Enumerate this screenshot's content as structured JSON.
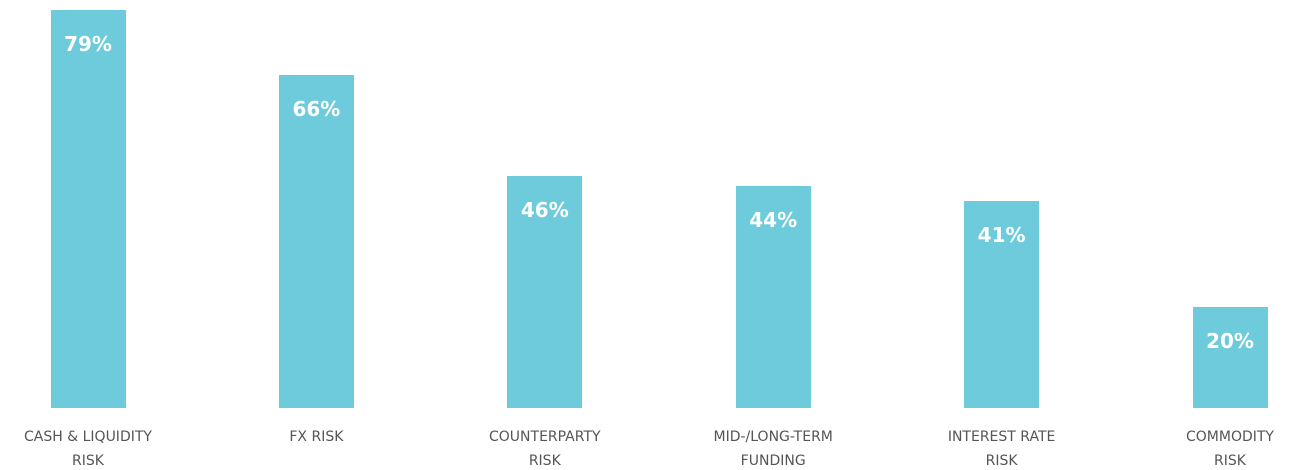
{
  "chart_data": {
    "type": "bar",
    "categories": [
      "CASH & LIQUIDITY\nRISK",
      "FX RISK",
      "COUNTERPARTY\nRISK",
      "MID-/LONG-TERM\nFUNDING",
      "INTEREST RATE\nRISK",
      "COMMODITY\nRISK"
    ],
    "values": [
      79,
      66,
      46,
      44,
      41,
      20
    ],
    "value_labels": [
      "79%",
      "66%",
      "46%",
      "44%",
      "41%",
      "20%"
    ],
    "color": "#6dcbdb"
  }
}
